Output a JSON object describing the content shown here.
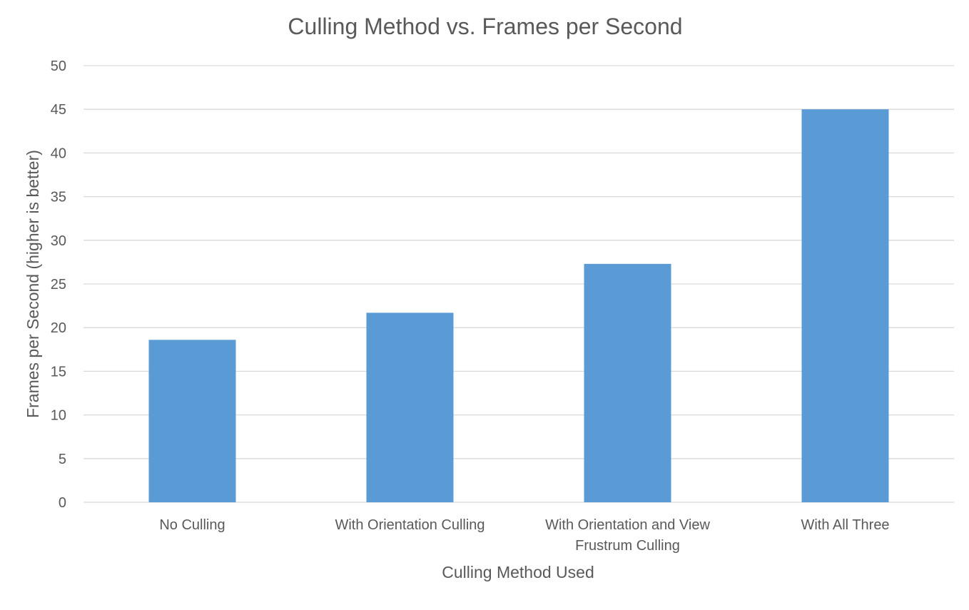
{
  "chart_data": {
    "type": "bar",
    "title": "Culling Method vs. Frames per Second",
    "xlabel": "Culling Method Used",
    "ylabel": "Frames per Second (higher is better)",
    "categories": [
      "No Culling",
      "With Orientation Culling",
      "With Orientation and View Frustrum Culling",
      "With All Three"
    ],
    "category_lines": [
      [
        "No Culling"
      ],
      [
        "With Orientation Culling"
      ],
      [
        "With Orientation and View",
        "Frustrum Culling"
      ],
      [
        "With All Three"
      ]
    ],
    "values": [
      18.6,
      21.7,
      27.3,
      45.0
    ],
    "ylim": [
      0,
      50
    ],
    "yticks": [
      0,
      5,
      10,
      15,
      20,
      25,
      30,
      35,
      40,
      45,
      50
    ],
    "grid": true,
    "legend": "none",
    "colors": {
      "bar": "#5b9bd5",
      "grid": "#d9d9d9",
      "text": "#595959"
    }
  }
}
